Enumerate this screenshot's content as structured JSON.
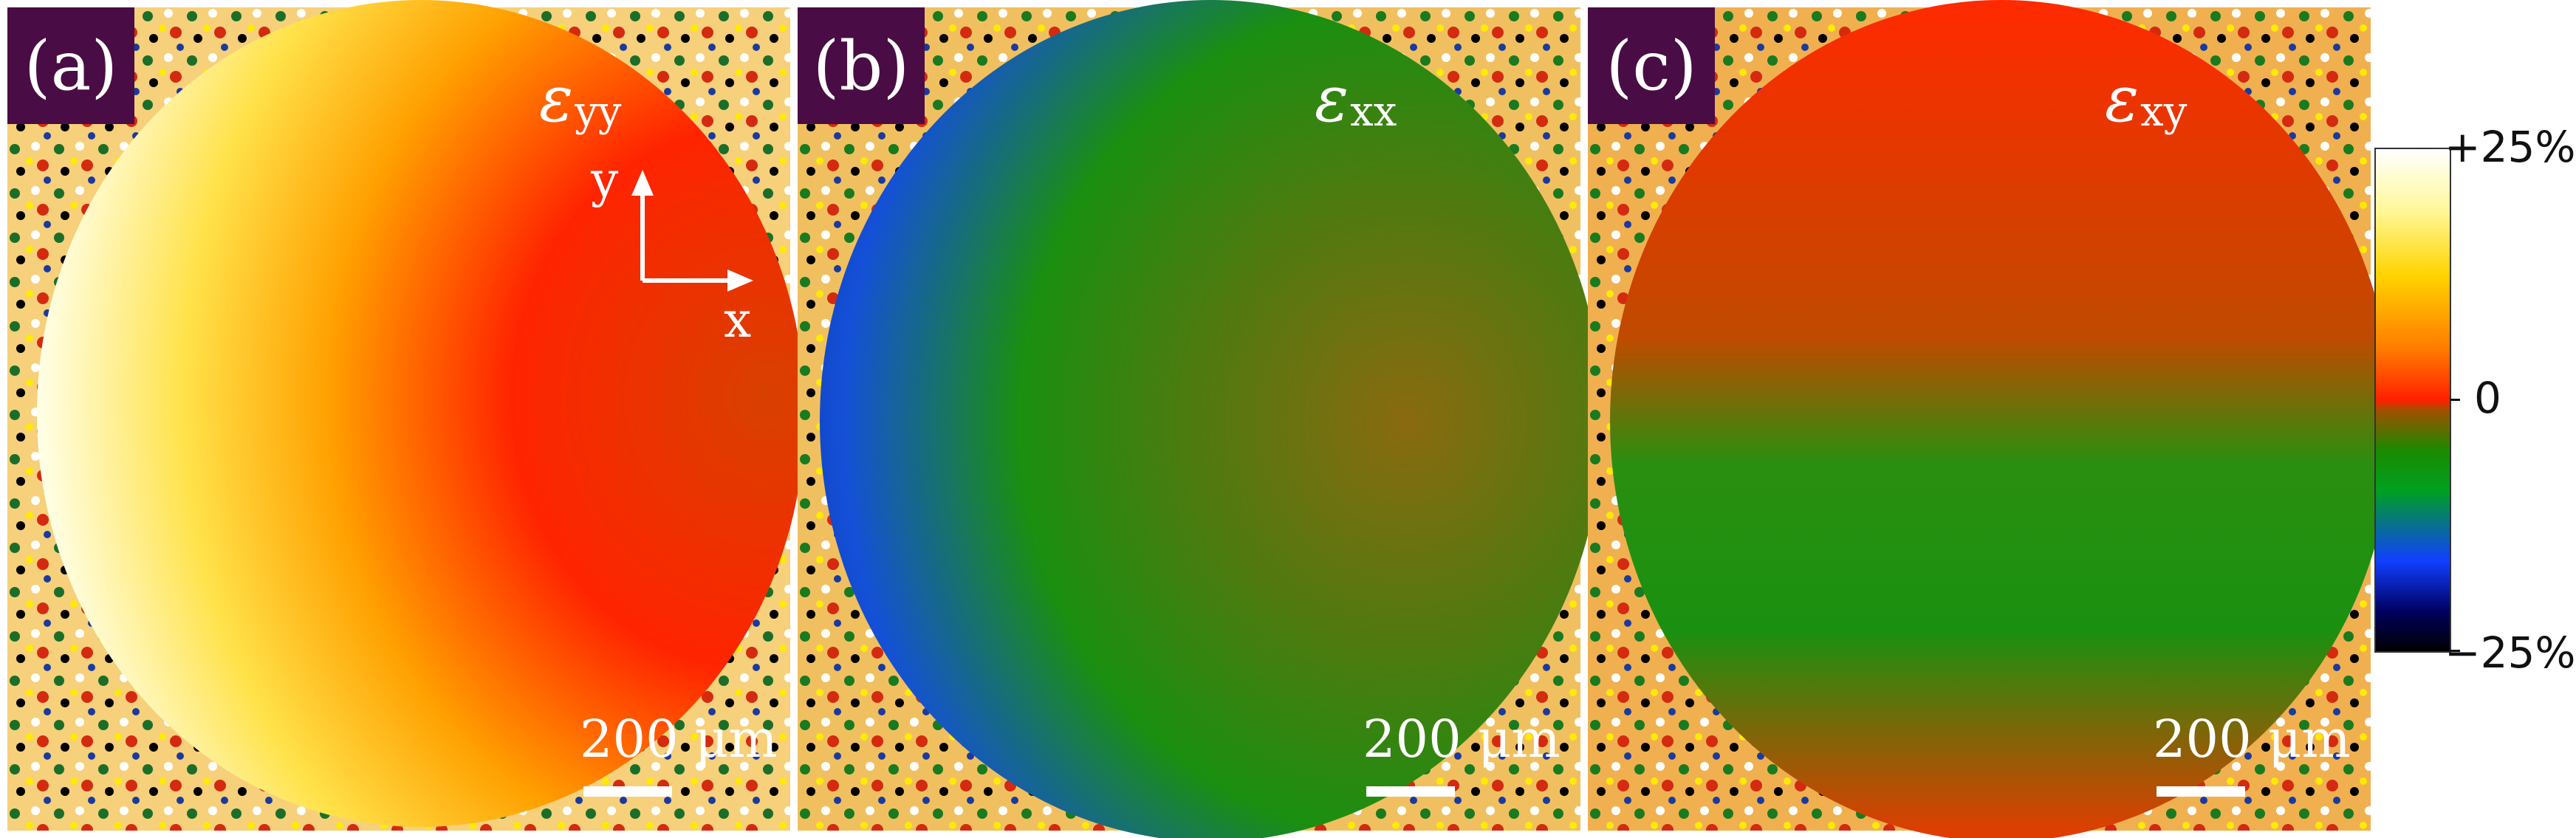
{
  "panels": [
    {
      "label": "(a)",
      "symbol": "ε",
      "subscript": "yy",
      "scale_label": "200 μm",
      "symbol_color": "#ffffff"
    },
    {
      "label": "(b)",
      "symbol": "ε",
      "subscript": "xx",
      "scale_label": "200 μm",
      "symbol_color": "#ffffff"
    },
    {
      "label": "(c)",
      "symbol": "ε",
      "subscript": "xy",
      "scale_label": "200 μm",
      "symbol_color": "#ffffff"
    }
  ],
  "axes": {
    "y_label": "y",
    "x_label": "x"
  },
  "colorbar": {
    "max_label": "+25%",
    "mid_label": "0",
    "min_label": "−25%"
  },
  "colors": {
    "badge": "#4a0c44",
    "panel_a_core": "#ff3a00",
    "panel_b_core": "#1a8f10",
    "panel_c_core": "#ff2a00"
  }
}
